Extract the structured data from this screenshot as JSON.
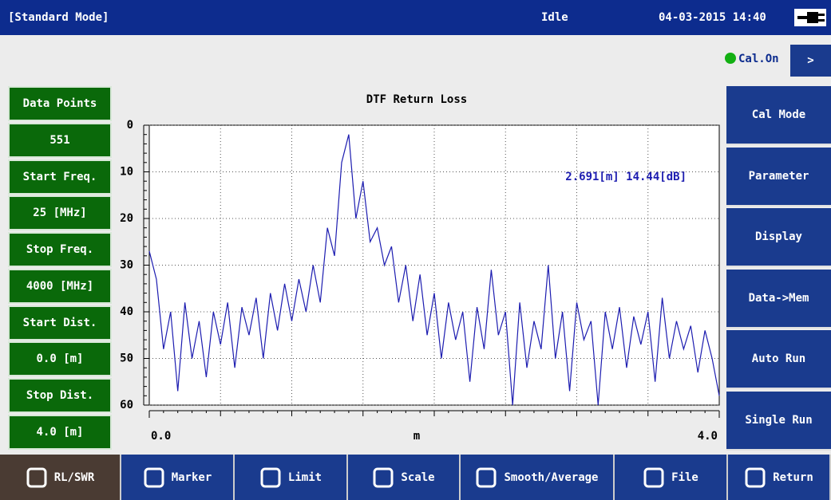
{
  "header": {
    "mode": "[Standard Mode]",
    "status": "Idle",
    "datetime": "04-03-2015 14:40"
  },
  "cal": {
    "status": "Cal.On",
    "next": ">"
  },
  "settings": [
    {
      "label": "Data Points",
      "value": "551"
    },
    {
      "label": "Start Freq.",
      "value": "25 [MHz]"
    },
    {
      "label": "Stop Freq.",
      "value": "4000 [MHz]"
    },
    {
      "label": "Start Dist.",
      "value": "0.0 [m]"
    },
    {
      "label": "Stop Dist.",
      "value": "4.0 [m]"
    }
  ],
  "menu": [
    "Cal Mode",
    "Parameter",
    "Display",
    "Data->Mem",
    "Auto Run",
    "Single Run"
  ],
  "toolbar": [
    "RL/SWR",
    "Marker",
    "Limit",
    "Scale",
    "Smooth/Average",
    "File",
    "Return"
  ],
  "chart_data": {
    "type": "line",
    "title": "DTF Return Loss",
    "x_label": "m",
    "annotation": "2.691[m] 14.44[dB]",
    "xlim": [
      0,
      4
    ],
    "xticks": [
      {
        "value": 0,
        "label": "0.0"
      },
      {
        "value": 4,
        "label": "4.0"
      }
    ],
    "xgrid": [
      0.5,
      1,
      1.5,
      2,
      2.5,
      3,
      3.5
    ],
    "ylim": [
      0,
      60
    ],
    "y_inverted": true,
    "yticks": [
      0,
      10,
      20,
      30,
      40,
      50,
      60
    ],
    "grid": true,
    "series": [
      {
        "color": "#1c1cb0",
        "x": [
          0,
          0.05,
          0.1,
          0.15,
          0.2,
          0.25,
          0.3,
          0.35,
          0.4,
          0.45,
          0.5,
          0.55,
          0.6,
          0.65,
          0.7,
          0.75,
          0.8,
          0.85,
          0.9,
          0.95,
          1,
          1.05,
          1.1,
          1.15,
          1.2,
          1.25,
          1.3,
          1.35,
          1.4,
          1.45,
          1.5,
          1.55,
          1.6,
          1.65,
          1.7,
          1.75,
          1.8,
          1.85,
          1.9,
          1.95,
          2,
          2.05,
          2.1,
          2.15,
          2.2,
          2.25,
          2.3,
          2.35,
          2.4,
          2.45,
          2.5,
          2.55,
          2.6,
          2.65,
          2.7,
          2.75,
          2.8,
          2.85,
          2.9,
          2.95,
          3,
          3.05,
          3.1,
          3.15,
          3.2,
          3.25,
          3.3,
          3.35,
          3.4,
          3.45,
          3.5,
          3.55,
          3.6,
          3.65,
          3.7,
          3.75,
          3.8,
          3.85,
          3.9,
          3.95,
          4
        ],
        "values": [
          27,
          33,
          48,
          40,
          57,
          38,
          50,
          42,
          54,
          40,
          47,
          38,
          52,
          39,
          45,
          37,
          50,
          36,
          44,
          34,
          42,
          33,
          40,
          30,
          38,
          22,
          28,
          8,
          2,
          20,
          12,
          25,
          22,
          30,
          26,
          38,
          30,
          42,
          32,
          45,
          36,
          50,
          38,
          46,
          40,
          55,
          39,
          48,
          31,
          45,
          40,
          60,
          38,
          52,
          42,
          48,
          30,
          50,
          40,
          57,
          38,
          46,
          42,
          60,
          40,
          48,
          39,
          52,
          41,
          47,
          40,
          55,
          37,
          50,
          42,
          48,
          43,
          53,
          44,
          50,
          58
        ]
      }
    ]
  }
}
